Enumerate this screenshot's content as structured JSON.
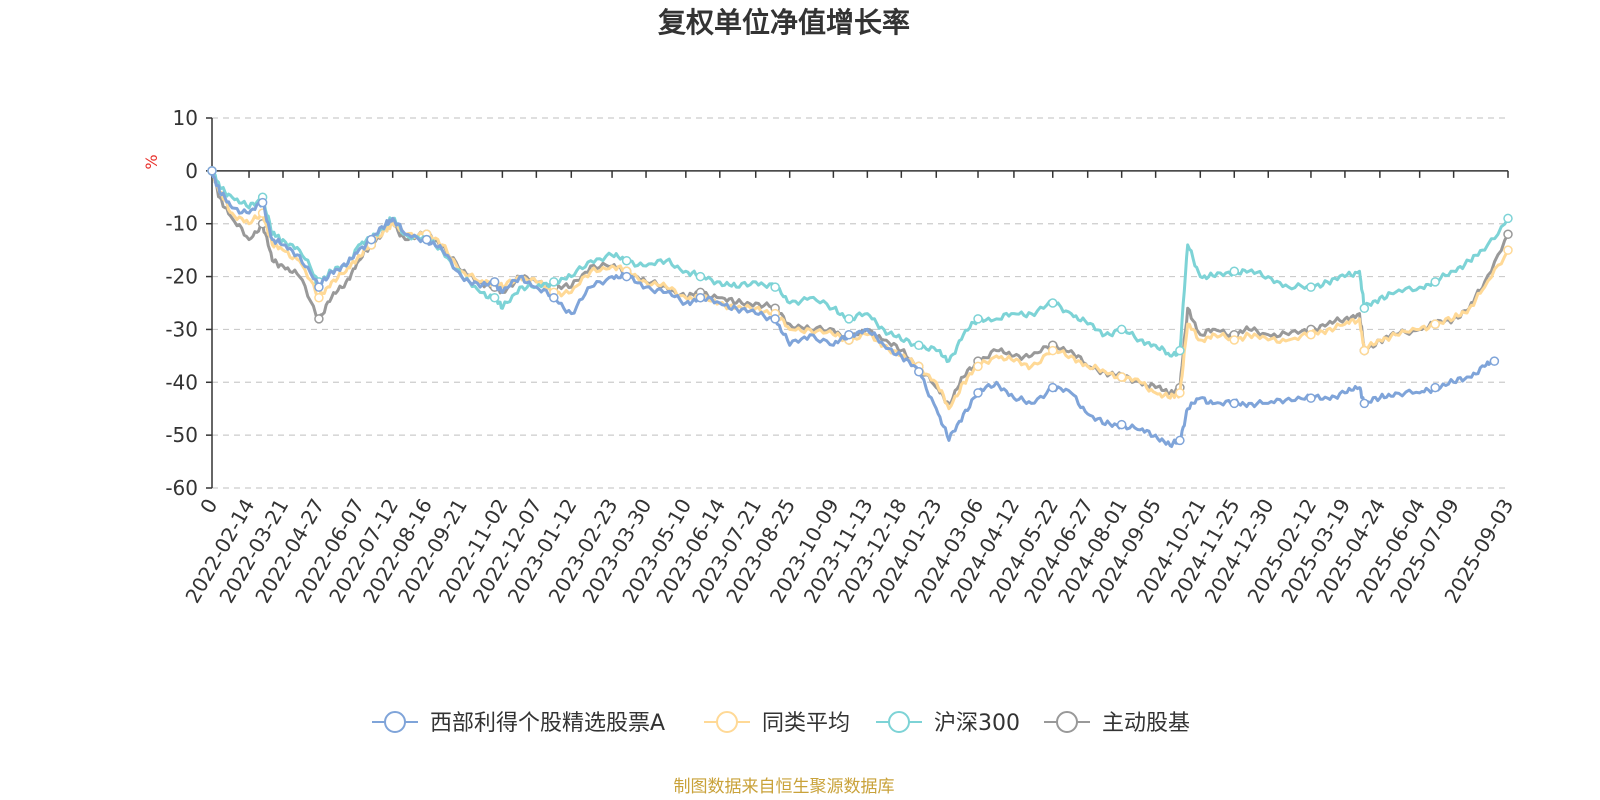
{
  "chart_data": {
    "type": "line",
    "title": "复权单位净值增长率",
    "ylabel": "%",
    "ylim": [
      -60,
      10
    ],
    "yticks": [
      10,
      0,
      -10,
      -20,
      -30,
      -40,
      -50,
      -60
    ],
    "x_origin_label": "0",
    "x_dates": [
      "2022-02-14",
      "2022-03-21",
      "2022-04-27",
      "2022-06-07",
      "2022-07-12",
      "2022-08-16",
      "2022-09-21",
      "2022-11-02",
      "2022-12-07",
      "2023-01-12",
      "2023-02-23",
      "2023-03-30",
      "2023-05-10",
      "2023-06-14",
      "2023-07-21",
      "2023-08-25",
      "2023-10-09",
      "2023-11-13",
      "2023-12-18",
      "2024-01-23",
      "2024-03-06",
      "2024-04-12",
      "2024-05-22",
      "2024-06-27",
      "2024-08-01",
      "2024-09-05",
      "2024-10-21",
      "2024-11-25",
      "2024-12-30",
      "2025-02-12",
      "2025-03-19",
      "2025-04-24",
      "2025-06-04",
      "2025-07-09",
      "2025-09-03"
    ],
    "grid": true,
    "legend_position": "bottom",
    "series": [
      {
        "name": "西部利得个股精选股票A",
        "color": "#7fa4d9",
        "x": [
          "2022-01-01",
          "2022-01-10",
          "2022-01-25",
          "2022-02-14",
          "2022-02-28",
          "2022-03-10",
          "2022-03-21",
          "2022-04-07",
          "2022-04-27",
          "2022-05-10",
          "2022-05-25",
          "2022-06-07",
          "2022-06-20",
          "2022-07-05",
          "2022-07-12",
          "2022-07-25",
          "2022-08-16",
          "2022-09-01",
          "2022-09-21",
          "2022-10-10",
          "2022-10-25",
          "2022-11-02",
          "2022-11-20",
          "2022-12-07",
          "2022-12-25",
          "2023-01-12",
          "2023-02-01",
          "2023-02-23",
          "2023-03-10",
          "2023-03-30",
          "2023-04-20",
          "2023-05-10",
          "2023-05-25",
          "2023-06-14",
          "2023-07-01",
          "2023-07-21",
          "2023-08-10",
          "2023-08-25",
          "2023-09-15",
          "2023-10-09",
          "2023-10-25",
          "2023-11-13",
          "2023-11-30",
          "2023-12-18",
          "2024-01-05",
          "2024-01-23",
          "2024-02-05",
          "2024-02-20",
          "2024-03-06",
          "2024-03-25",
          "2024-04-12",
          "2024-04-30",
          "2024-05-22",
          "2024-06-10",
          "2024-06-27",
          "2024-07-15",
          "2024-08-01",
          "2024-08-20",
          "2024-09-05",
          "2024-09-20",
          "2024-09-30",
          "2024-10-08",
          "2024-10-21",
          "2024-11-05",
          "2024-11-25",
          "2024-12-10",
          "2024-12-30",
          "2025-01-20",
          "2025-02-12",
          "2025-03-01",
          "2025-03-19",
          "2025-04-03",
          "2025-04-08",
          "2025-04-24",
          "2025-05-10",
          "2025-06-04",
          "2025-06-20",
          "2025-07-09",
          "2025-07-25",
          "2025-08-10",
          "2025-08-20"
        ],
        "y": [
          0,
          -4,
          -7,
          -8,
          -6,
          -13,
          -14,
          -16,
          -22,
          -19,
          -18,
          -15,
          -13,
          -10,
          -9,
          -12,
          -13,
          -15,
          -20,
          -22,
          -21,
          -23,
          -20,
          -22,
          -24,
          -27,
          -22,
          -20,
          -20,
          -22,
          -23,
          -25,
          -24,
          -25,
          -26,
          -27,
          -28,
          -33,
          -31,
          -33,
          -31,
          -30,
          -33,
          -35,
          -38,
          -45,
          -51,
          -46,
          -42,
          -40,
          -43,
          -44,
          -41,
          -42,
          -46,
          -48,
          -48,
          -49,
          -50,
          -52,
          -51,
          -45,
          -43,
          -44,
          -44,
          -44,
          -44,
          -43,
          -43,
          -43,
          -42,
          -41,
          -44,
          -43,
          -42,
          -42,
          -41,
          -40,
          -39,
          -37,
          -36
        ]
      },
      {
        "name": "同类平均",
        "color": "#ffd996",
        "x": [
          "2022-01-01",
          "2022-01-10",
          "2022-01-25",
          "2022-02-14",
          "2022-02-28",
          "2022-03-10",
          "2022-03-21",
          "2022-04-07",
          "2022-04-27",
          "2022-05-10",
          "2022-05-25",
          "2022-06-07",
          "2022-06-20",
          "2022-07-05",
          "2022-07-12",
          "2022-07-25",
          "2022-08-16",
          "2022-09-01",
          "2022-09-21",
          "2022-10-10",
          "2022-10-25",
          "2022-11-02",
          "2022-11-20",
          "2022-12-07",
          "2022-12-25",
          "2023-01-12",
          "2023-02-01",
          "2023-02-23",
          "2023-03-10",
          "2023-03-30",
          "2023-04-20",
          "2023-05-10",
          "2023-05-25",
          "2023-06-14",
          "2023-07-01",
          "2023-07-21",
          "2023-08-10",
          "2023-08-25",
          "2023-09-15",
          "2023-10-09",
          "2023-10-25",
          "2023-11-13",
          "2023-11-30",
          "2023-12-18",
          "2024-01-05",
          "2024-01-23",
          "2024-02-05",
          "2024-02-20",
          "2024-03-06",
          "2024-03-25",
          "2024-04-12",
          "2024-04-30",
          "2024-05-22",
          "2024-06-10",
          "2024-06-27",
          "2024-07-15",
          "2024-08-01",
          "2024-08-20",
          "2024-09-05",
          "2024-09-20",
          "2024-09-30",
          "2024-10-08",
          "2024-10-21",
          "2024-11-05",
          "2024-11-25",
          "2024-12-10",
          "2024-12-30",
          "2025-01-20",
          "2025-02-12",
          "2025-03-01",
          "2025-03-19",
          "2025-04-03",
          "2025-04-08",
          "2025-04-24",
          "2025-05-10",
          "2025-06-04",
          "2025-06-20",
          "2025-07-09",
          "2025-07-25",
          "2025-08-10",
          "2025-09-03"
        ],
        "y": [
          0,
          -4,
          -8,
          -10,
          -8,
          -14,
          -15,
          -17,
          -24,
          -21,
          -19,
          -16,
          -14,
          -11,
          -10,
          -12,
          -12,
          -14,
          -19,
          -21,
          -21,
          -22,
          -20,
          -21,
          -23,
          -23,
          -19,
          -18,
          -19,
          -21,
          -22,
          -24,
          -24,
          -25,
          -26,
          -26,
          -27,
          -30,
          -30,
          -31,
          -32,
          -31,
          -33,
          -35,
          -37,
          -40,
          -45,
          -40,
          -37,
          -35,
          -36,
          -37,
          -34,
          -35,
          -37,
          -38,
          -39,
          -40,
          -42,
          -43,
          -42,
          -29,
          -32,
          -31,
          -32,
          -31,
          -32,
          -32,
          -31,
          -30,
          -29,
          -28,
          -34,
          -32,
          -31,
          -30,
          -29,
          -28,
          -26,
          -22,
          -15
        ]
      },
      {
        "name": "沪深300",
        "color": "#7dd3d6",
        "x": [
          "2022-01-01",
          "2022-01-10",
          "2022-01-25",
          "2022-02-14",
          "2022-02-28",
          "2022-03-10",
          "2022-03-21",
          "2022-04-07",
          "2022-04-27",
          "2022-05-10",
          "2022-05-25",
          "2022-06-07",
          "2022-06-20",
          "2022-07-05",
          "2022-07-12",
          "2022-07-25",
          "2022-08-16",
          "2022-09-01",
          "2022-09-21",
          "2022-10-10",
          "2022-10-25",
          "2022-11-02",
          "2022-11-20",
          "2022-12-07",
          "2022-12-25",
          "2023-01-12",
          "2023-02-01",
          "2023-02-23",
          "2023-03-10",
          "2023-03-30",
          "2023-04-20",
          "2023-05-10",
          "2023-05-25",
          "2023-06-14",
          "2023-07-01",
          "2023-07-21",
          "2023-08-10",
          "2023-08-25",
          "2023-09-15",
          "2023-10-09",
          "2023-10-25",
          "2023-11-13",
          "2023-11-30",
          "2023-12-18",
          "2024-01-05",
          "2024-01-23",
          "2024-02-05",
          "2024-02-20",
          "2024-03-06",
          "2024-03-25",
          "2024-04-12",
          "2024-04-30",
          "2024-05-22",
          "2024-06-10",
          "2024-06-27",
          "2024-07-15",
          "2024-08-01",
          "2024-08-20",
          "2024-09-05",
          "2024-09-20",
          "2024-09-30",
          "2024-10-08",
          "2024-10-21",
          "2024-11-05",
          "2024-11-25",
          "2024-12-10",
          "2024-12-30",
          "2025-01-20",
          "2025-02-12",
          "2025-03-01",
          "2025-03-19",
          "2025-04-03",
          "2025-04-08",
          "2025-04-24",
          "2025-05-10",
          "2025-06-04",
          "2025-06-20",
          "2025-07-09",
          "2025-07-25",
          "2025-08-10",
          "2025-09-03"
        ],
        "y": [
          0,
          -3,
          -5,
          -7,
          -5,
          -12,
          -13,
          -15,
          -21,
          -19,
          -18,
          -14,
          -13,
          -10,
          -9,
          -12,
          -13,
          -15,
          -20,
          -23,
          -24,
          -26,
          -22,
          -22,
          -21,
          -20,
          -17,
          -16,
          -17,
          -18,
          -17,
          -19,
          -20,
          -21,
          -22,
          -21,
          -22,
          -25,
          -24,
          -26,
          -28,
          -27,
          -30,
          -32,
          -33,
          -34,
          -36,
          -31,
          -28,
          -28,
          -27,
          -27,
          -25,
          -27,
          -29,
          -31,
          -30,
          -32,
          -33,
          -35,
          -34,
          -14,
          -20,
          -20,
          -19,
          -19,
          -20,
          -22,
          -22,
          -21,
          -20,
          -19,
          -26,
          -24,
          -23,
          -22,
          -21,
          -19,
          -17,
          -15,
          -9
        ]
      },
      {
        "name": "主动股基",
        "color": "#999999",
        "x": [
          "2022-01-01",
          "2022-01-10",
          "2022-01-25",
          "2022-02-14",
          "2022-02-28",
          "2022-03-10",
          "2022-03-21",
          "2022-04-07",
          "2022-04-27",
          "2022-05-10",
          "2022-05-25",
          "2022-06-07",
          "2022-06-20",
          "2022-07-05",
          "2022-07-12",
          "2022-07-25",
          "2022-08-16",
          "2022-09-01",
          "2022-09-21",
          "2022-10-10",
          "2022-10-25",
          "2022-11-02",
          "2022-11-20",
          "2022-12-07",
          "2022-12-25",
          "2023-01-12",
          "2023-02-01",
          "2023-02-23",
          "2023-03-10",
          "2023-03-30",
          "2023-04-20",
          "2023-05-10",
          "2023-05-25",
          "2023-06-14",
          "2023-07-01",
          "2023-07-21",
          "2023-08-10",
          "2023-08-25",
          "2023-09-15",
          "2023-10-09",
          "2023-10-25",
          "2023-11-13",
          "2023-11-30",
          "2023-12-18",
          "2024-01-05",
          "2024-01-23",
          "2024-02-05",
          "2024-02-20",
          "2024-03-06",
          "2024-03-25",
          "2024-04-12",
          "2024-04-30",
          "2024-05-22",
          "2024-06-10",
          "2024-06-27",
          "2024-07-15",
          "2024-08-01",
          "2024-08-20",
          "2024-09-05",
          "2024-09-20",
          "2024-09-30",
          "2024-10-08",
          "2024-10-21",
          "2024-11-05",
          "2024-11-25",
          "2024-12-10",
          "2024-12-30",
          "2025-01-20",
          "2025-02-12",
          "2025-03-01",
          "2025-03-19",
          "2025-04-03",
          "2025-04-08",
          "2025-04-24",
          "2025-05-10",
          "2025-06-04",
          "2025-06-20",
          "2025-07-09",
          "2025-07-25",
          "2025-08-10",
          "2025-09-03"
        ],
        "y": [
          0,
          -5,
          -9,
          -13,
          -10,
          -17,
          -18,
          -20,
          -28,
          -24,
          -21,
          -17,
          -14,
          -11,
          -10,
          -13,
          -12,
          -14,
          -19,
          -21,
          -22,
          -23,
          -20,
          -21,
          -22,
          -22,
          -18,
          -18,
          -19,
          -21,
          -22,
          -24,
          -23,
          -24,
          -25,
          -25,
          -26,
          -29,
          -30,
          -30,
          -32,
          -30,
          -32,
          -34,
          -37,
          -41,
          -44,
          -39,
          -36,
          -34,
          -35,
          -35,
          -33,
          -34,
          -37,
          -38,
          -39,
          -40,
          -41,
          -42,
          -41,
          -26,
          -31,
          -30,
          -31,
          -30,
          -31,
          -31,
          -30,
          -29,
          -28,
          -27,
          -34,
          -32,
          -31,
          -30,
          -29,
          -28,
          -26,
          -21,
          -12
        ]
      }
    ]
  },
  "legend": {
    "items": [
      "西部利得个股精选股票A",
      "同类平均",
      "沪深300",
      "主动股基"
    ]
  },
  "source_note": "制图数据来自恒生聚源数据库"
}
